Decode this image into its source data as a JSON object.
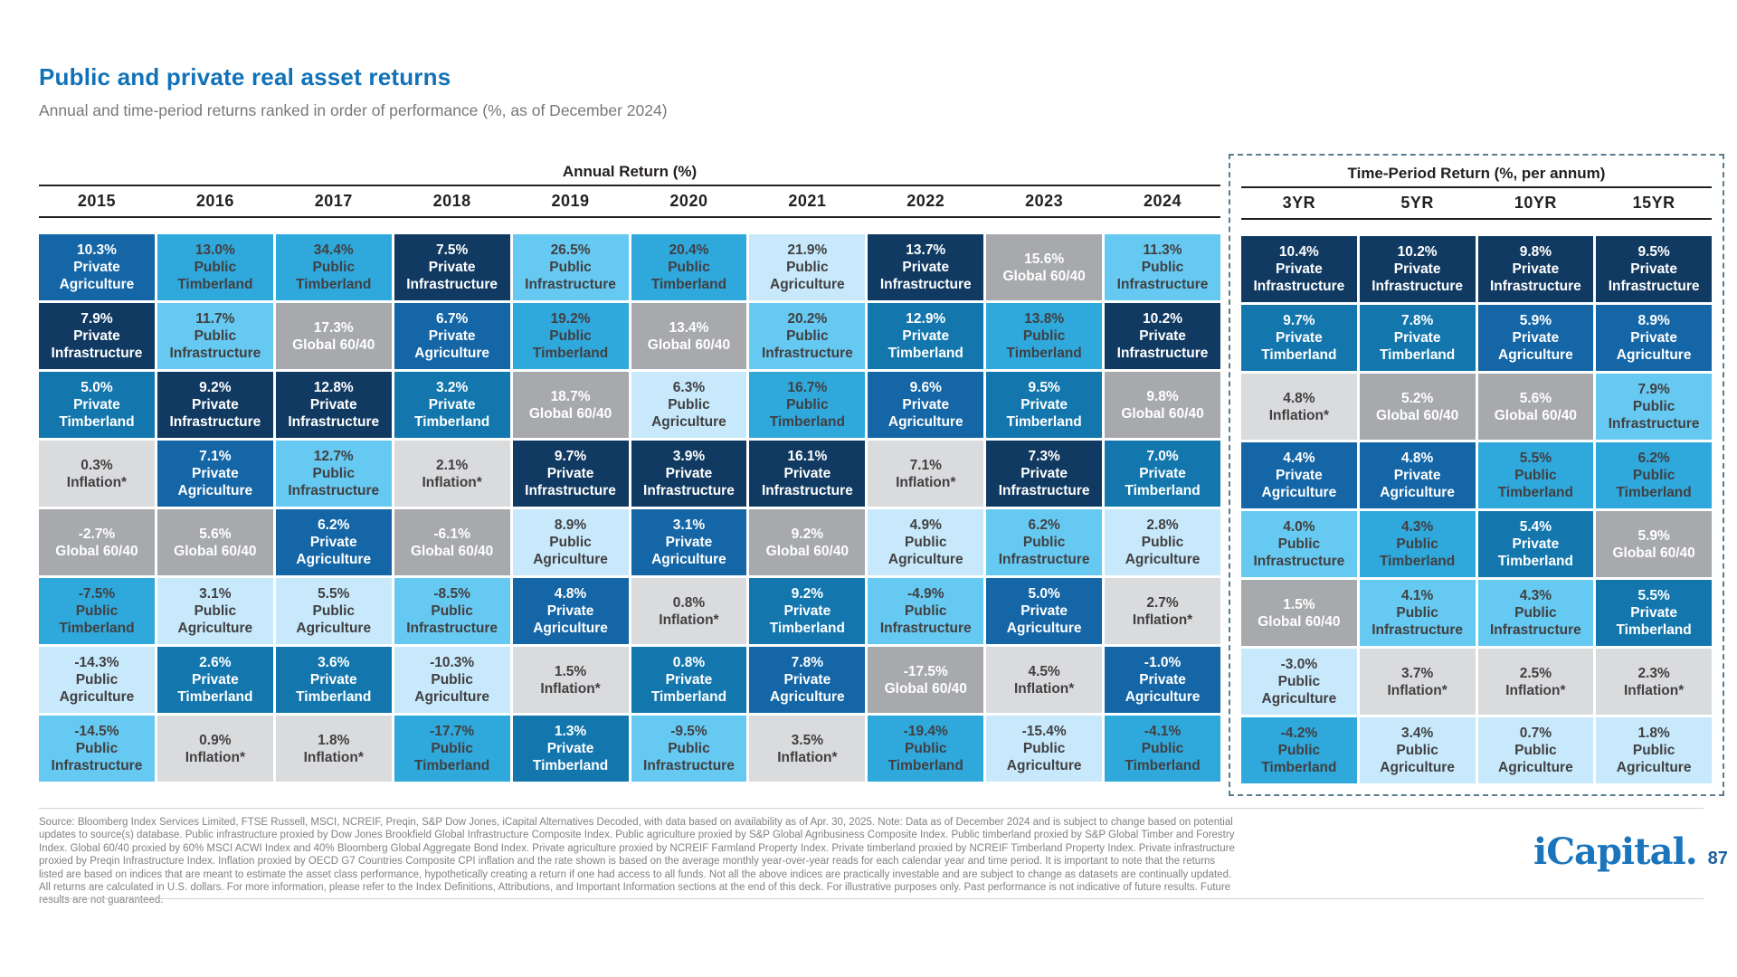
{
  "page": {
    "title": "Public and private real asset returns",
    "subtitle": "Annual and time-period returns ranked in order of performance (%, as of December 2024)",
    "logo_text": "iCapital.",
    "page_number": "87"
  },
  "chart_data": {
    "type": "table",
    "description": "Quilt chart ranking public and private real asset class returns per year and time period",
    "asset_styles": {
      "Private Agriculture": {
        "bg": "#1466A6",
        "fg": "#FFFFFF"
      },
      "Private Infrastructure": {
        "bg": "#113A62",
        "fg": "#FFFFFF"
      },
      "Private Timberland": {
        "bg": "#1377AE",
        "fg": "#FFFFFF"
      },
      "Public Timberland": {
        "bg": "#2FA8DC",
        "fg": "#414042"
      },
      "Public Infrastructure": {
        "bg": "#66C9F1",
        "fg": "#414042"
      },
      "Public Agriculture": {
        "bg": "#C7E9FB",
        "fg": "#414042"
      },
      "Global 60/40": {
        "bg": "#A7A9AC",
        "fg": "#FFFFFF"
      },
      "Inflation*": {
        "bg": "#DADBDC",
        "fg": "#414042"
      }
    },
    "annual": {
      "title": "Annual Return (%)",
      "columns": [
        {
          "label": "2015",
          "cells": [
            {
              "value": "10.3%",
              "asset": "Private Agriculture"
            },
            {
              "value": "7.9%",
              "asset": "Private Infrastructure"
            },
            {
              "value": "5.0%",
              "asset": "Private Timberland"
            },
            {
              "value": "0.3%",
              "asset": "Inflation*"
            },
            {
              "value": "-2.7%",
              "asset": "Global 60/40"
            },
            {
              "value": "-7.5%",
              "asset": "Public Timberland"
            },
            {
              "value": "-14.3%",
              "asset": "Public Agriculture"
            },
            {
              "value": "-14.5%",
              "asset": "Public Infrastructure"
            }
          ]
        },
        {
          "label": "2016",
          "cells": [
            {
              "value": "13.0%",
              "asset": "Public Timberland"
            },
            {
              "value": "11.7%",
              "asset": "Public Infrastructure"
            },
            {
              "value": "9.2%",
              "asset": "Private Infrastructure"
            },
            {
              "value": "7.1%",
              "asset": "Private Agriculture"
            },
            {
              "value": "5.6%",
              "asset": "Global 60/40"
            },
            {
              "value": "3.1%",
              "asset": "Public Agriculture"
            },
            {
              "value": "2.6%",
              "asset": "Private Timberland"
            },
            {
              "value": "0.9%",
              "asset": "Inflation*"
            }
          ]
        },
        {
          "label": "2017",
          "cells": [
            {
              "value": "34.4%",
              "asset": "Public Timberland"
            },
            {
              "value": "17.3%",
              "asset": "Global 60/40"
            },
            {
              "value": "12.8%",
              "asset": "Private Infrastructure"
            },
            {
              "value": "12.7%",
              "asset": "Public Infrastructure"
            },
            {
              "value": "6.2%",
              "asset": "Private Agriculture"
            },
            {
              "value": "5.5%",
              "asset": "Public Agriculture"
            },
            {
              "value": "3.6%",
              "asset": "Private Timberland"
            },
            {
              "value": "1.8%",
              "asset": "Inflation*"
            }
          ]
        },
        {
          "label": "2018",
          "cells": [
            {
              "value": "7.5%",
              "asset": "Private Infrastructure"
            },
            {
              "value": "6.7%",
              "asset": "Private Agriculture"
            },
            {
              "value": "3.2%",
              "asset": "Private Timberland"
            },
            {
              "value": "2.1%",
              "asset": "Inflation*"
            },
            {
              "value": "-6.1%",
              "asset": "Global 60/40"
            },
            {
              "value": "-8.5%",
              "asset": "Public Infrastructure"
            },
            {
              "value": "-10.3%",
              "asset": "Public Agriculture"
            },
            {
              "value": "-17.7%",
              "asset": "Public Timberland"
            }
          ]
        },
        {
          "label": "2019",
          "cells": [
            {
              "value": "26.5%",
              "asset": "Public Infrastructure"
            },
            {
              "value": "19.2%",
              "asset": "Public Timberland"
            },
            {
              "value": "18.7%",
              "asset": "Global 60/40"
            },
            {
              "value": "9.7%",
              "asset": "Private Infrastructure"
            },
            {
              "value": "8.9%",
              "asset": "Public Agriculture"
            },
            {
              "value": "4.8%",
              "asset": "Private Agriculture"
            },
            {
              "value": "1.5%",
              "asset": "Inflation*"
            },
            {
              "value": "1.3%",
              "asset": "Private Timberland"
            }
          ]
        },
        {
          "label": "2020",
          "cells": [
            {
              "value": "20.4%",
              "asset": "Public Timberland"
            },
            {
              "value": "13.4%",
              "asset": "Global 60/40"
            },
            {
              "value": "6.3%",
              "asset": "Public Agriculture"
            },
            {
              "value": "3.9%",
              "asset": "Private Infrastructure"
            },
            {
              "value": "3.1%",
              "asset": "Private Agriculture"
            },
            {
              "value": "0.8%",
              "asset": "Inflation*"
            },
            {
              "value": "0.8%",
              "asset": "Private Timberland"
            },
            {
              "value": "-9.5%",
              "asset": "Public Infrastructure"
            }
          ]
        },
        {
          "label": "2021",
          "cells": [
            {
              "value": "21.9%",
              "asset": "Public Agriculture"
            },
            {
              "value": "20.2%",
              "asset": "Public Infrastructure"
            },
            {
              "value": "16.7%",
              "asset": "Public Timberland"
            },
            {
              "value": "16.1%",
              "asset": "Private Infrastructure"
            },
            {
              "value": "9.2%",
              "asset": "Global 60/40"
            },
            {
              "value": "9.2%",
              "asset": "Private Timberland"
            },
            {
              "value": "7.8%",
              "asset": "Private Agriculture"
            },
            {
              "value": "3.5%",
              "asset": "Inflation*"
            }
          ]
        },
        {
          "label": "2022",
          "cells": [
            {
              "value": "13.7%",
              "asset": "Private Infrastructure"
            },
            {
              "value": "12.9%",
              "asset": "Private Timberland"
            },
            {
              "value": "9.6%",
              "asset": "Private Agriculture"
            },
            {
              "value": "7.1%",
              "asset": "Inflation*"
            },
            {
              "value": "4.9%",
              "asset": "Public Agriculture"
            },
            {
              "value": "-4.9%",
              "asset": "Public Infrastructure"
            },
            {
              "value": "-17.5%",
              "asset": "Global 60/40"
            },
            {
              "value": "-19.4%",
              "asset": "Public Timberland"
            }
          ]
        },
        {
          "label": "2023",
          "cells": [
            {
              "value": "15.6%",
              "asset": "Global 60/40"
            },
            {
              "value": "13.8%",
              "asset": "Public Timberland"
            },
            {
              "value": "9.5%",
              "asset": "Private Timberland"
            },
            {
              "value": "7.3%",
              "asset": "Private Infrastructure"
            },
            {
              "value": "6.2%",
              "asset": "Public Infrastructure"
            },
            {
              "value": "5.0%",
              "asset": "Private Agriculture"
            },
            {
              "value": "4.5%",
              "asset": "Inflation*"
            },
            {
              "value": "-15.4%",
              "asset": "Public Agriculture"
            }
          ]
        },
        {
          "label": "2024",
          "cells": [
            {
              "value": "11.3%",
              "asset": "Public Infrastructure"
            },
            {
              "value": "10.2%",
              "asset": "Private Infrastructure"
            },
            {
              "value": "9.8%",
              "asset": "Global 60/40"
            },
            {
              "value": "7.0%",
              "asset": "Private Timberland"
            },
            {
              "value": "2.8%",
              "asset": "Public Agriculture"
            },
            {
              "value": "2.7%",
              "asset": "Inflation*"
            },
            {
              "value": "-1.0%",
              "asset": "Private Agriculture"
            },
            {
              "value": "-4.1%",
              "asset": "Public Timberland"
            }
          ]
        }
      ]
    },
    "time_period": {
      "title": "Time-Period Return (%, per annum)",
      "columns": [
        {
          "label": "3YR",
          "cells": [
            {
              "value": "10.4%",
              "asset": "Private Infrastructure"
            },
            {
              "value": "9.7%",
              "asset": "Private Timberland"
            },
            {
              "value": "4.8%",
              "asset": "Inflation*"
            },
            {
              "value": "4.4%",
              "asset": "Private Agriculture"
            },
            {
              "value": "4.0%",
              "asset": "Public Infrastructure"
            },
            {
              "value": "1.5%",
              "asset": "Global 60/40"
            },
            {
              "value": "-3.0%",
              "asset": "Public Agriculture"
            },
            {
              "value": "-4.2%",
              "asset": "Public Timberland"
            }
          ]
        },
        {
          "label": "5YR",
          "cells": [
            {
              "value": "10.2%",
              "asset": "Private Infrastructure"
            },
            {
              "value": "7.8%",
              "asset": "Private Timberland"
            },
            {
              "value": "5.2%",
              "asset": "Global 60/40"
            },
            {
              "value": "4.8%",
              "asset": "Private Agriculture"
            },
            {
              "value": "4.3%",
              "asset": "Public Timberland"
            },
            {
              "value": "4.1%",
              "asset": "Public Infrastructure"
            },
            {
              "value": "3.7%",
              "asset": "Inflation*"
            },
            {
              "value": "3.4%",
              "asset": "Public Agriculture"
            }
          ]
        },
        {
          "label": "10YR",
          "cells": [
            {
              "value": "9.8%",
              "asset": "Private Infrastructure"
            },
            {
              "value": "5.9%",
              "asset": "Private Agriculture"
            },
            {
              "value": "5.6%",
              "asset": "Global 60/40"
            },
            {
              "value": "5.5%",
              "asset": "Public Timberland"
            },
            {
              "value": "5.4%",
              "asset": "Private Timberland"
            },
            {
              "value": "4.3%",
              "asset": "Public Infrastructure"
            },
            {
              "value": "2.5%",
              "asset": "Inflation*"
            },
            {
              "value": "0.7%",
              "asset": "Public Agriculture"
            }
          ]
        },
        {
          "label": "15YR",
          "cells": [
            {
              "value": "9.5%",
              "asset": "Private Infrastructure"
            },
            {
              "value": "8.9%",
              "asset": "Private Agriculture"
            },
            {
              "value": "7.9%",
              "asset": "Public Infrastructure"
            },
            {
              "value": "6.2%",
              "asset": "Public Timberland"
            },
            {
              "value": "5.9%",
              "asset": "Global 60/40"
            },
            {
              "value": "5.5%",
              "asset": "Private Timberland"
            },
            {
              "value": "2.3%",
              "asset": "Inflation*"
            },
            {
              "value": "1.8%",
              "asset": "Public Agriculture"
            }
          ]
        }
      ]
    }
  },
  "footer": {
    "text": "Source: Bloomberg Index Services Limited, FTSE Russell, MSCI, NCREIF, Preqin, S&P Dow Jones, iCapital Alternatives Decoded, with data based on availability as of Apr. 30, 2025. Note: Data as of December 2024 and is subject to change based on potential updates to source(s) database. Public infrastructure proxied by Dow Jones Brookfield Global Infrastructure Composite Index. Public agriculture proxied by S&P Global Agribusiness Composite Index. Public timberland proxied by S&P Global Timber and Forestry Index. Global 60/40 proxied by 60% MSCI ACWI Index and 40% Bloomberg Global Aggregate Bond Index. Private agriculture proxied by NCREIF Farmland Property Index. Private timberland proxied by NCREIF Timberland Property Index. Private infrastructure proxied by Preqin Infrastructure Index. Inflation proxied by OECD G7 Countries Composite CPI inflation and the rate shown is based on the average monthly year-over-year reads for each calendar year and time period. It is important to note that the returns listed are based on indices that are meant to estimate the asset class performance, hypothetically creating a return if one had access to all funds. Not all the above indices are practically investable and are subject to change as datasets are continually updated. All returns are calculated in U.S. dollars. For more information, please refer to the Index Definitions, Attributions, and Important Information sections at the end of this deck. For illustrative purposes only. Past performance is not indicative of future results. Future results are not guaranteed."
  }
}
